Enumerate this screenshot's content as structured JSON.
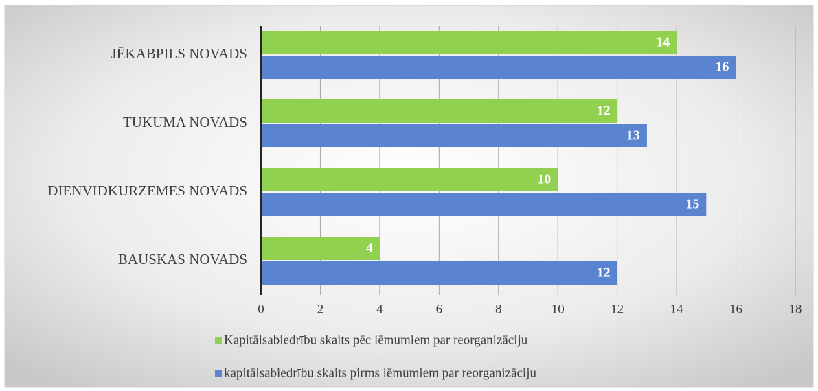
{
  "chart_data": {
    "type": "bar",
    "orientation": "horizontal",
    "categories": [
      "JĒKABPILS NOVADS",
      "TUKUMA NOVADS",
      "DIENVIDKURZEMES NOVADS",
      "BAUSKAS NOVADS"
    ],
    "series": [
      {
        "name": "Kapitālsabiedrību skaits pēc lēmumiem par reorganizāciju",
        "color": "#92d050",
        "values": [
          14,
          12,
          10,
          4
        ]
      },
      {
        "name": "kapitālsabiedrību skaits pirms lēmumiem par reorganizāciju",
        "color": "#5b84d0",
        "values": [
          16,
          13,
          15,
          12
        ]
      }
    ],
    "xlim": [
      0,
      18
    ],
    "xticks": [
      0,
      2,
      4,
      6,
      8,
      10,
      12,
      14,
      16,
      18
    ],
    "grid": true,
    "legend": "bottom"
  }
}
